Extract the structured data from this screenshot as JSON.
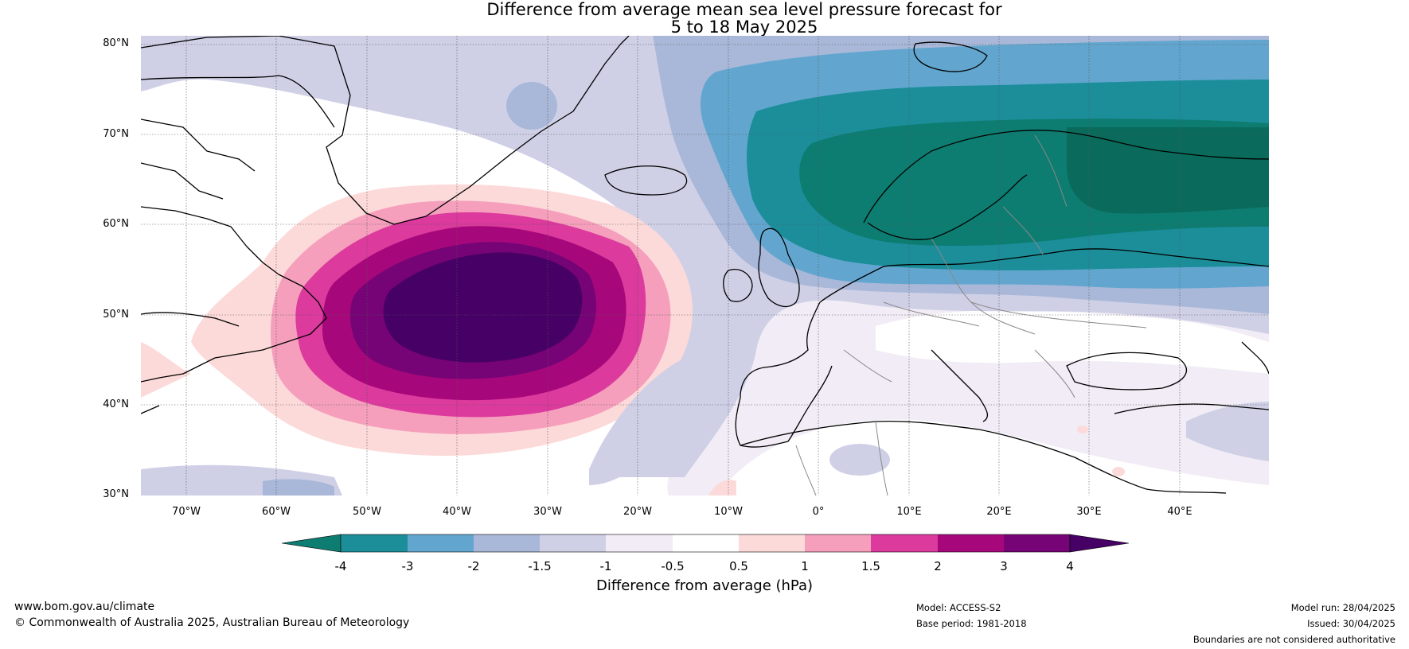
{
  "title": {
    "line1": "Difference from average mean sea level pressure forecast for",
    "line2": "5 to 18 May 2025"
  },
  "map": {
    "lat_labels": [
      "80°N",
      "70°N",
      "60°N",
      "50°N",
      "40°N",
      "30°N"
    ],
    "lon_labels": [
      "70°W",
      "60°W",
      "50°W",
      "40°W",
      "30°W",
      "20°W",
      "10°W",
      "0°",
      "10°E",
      "20°E",
      "30°E",
      "40°E"
    ],
    "lat_range": [
      30,
      81
    ],
    "lon_range": [
      -75,
      50
    ]
  },
  "colorbar": {
    "ticks": [
      "-4",
      "-3",
      "-2",
      "-1.5",
      "-1",
      "-0.5",
      "0.5",
      "1",
      "1.5",
      "2",
      "3",
      "4"
    ],
    "colors": [
      "#0d7d72",
      "#1c8e9a",
      "#62a6cf",
      "#a9b8d8",
      "#cfd0e6",
      "#f1ecf5",
      "#ffffff",
      "#fddada",
      "#f59fbc",
      "#dc3a9d",
      "#a6087b",
      "#760476",
      "#470066"
    ],
    "label": "Difference from average (hPa)"
  },
  "footer": {
    "url": "www.bom.gov.au/climate",
    "copyright": "© Commonwealth of Australia 2025, Australian Bureau of Meteorology",
    "model": "Model: ACCESS-S2",
    "base_period": "Base period: 1981-2018",
    "model_run": "Model run: 28/04/2025",
    "issued": "Issued: 30/04/2025",
    "disclaimer": "Boundaries are not considered authoritative"
  }
}
